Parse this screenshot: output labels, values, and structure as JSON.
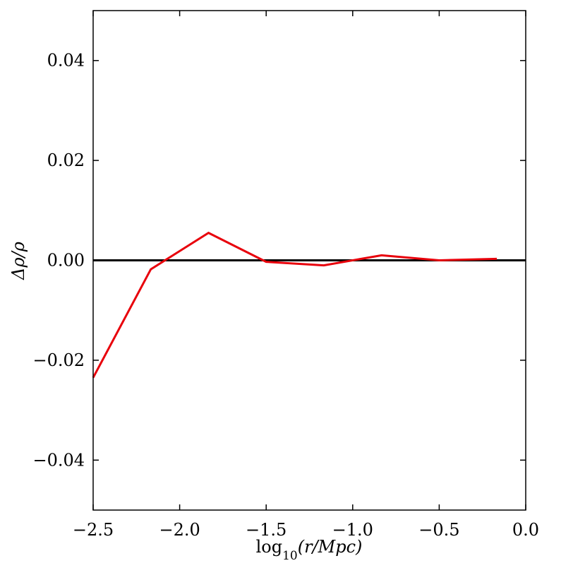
{
  "chart_data": {
    "type": "line",
    "xlabel": "log",
    "xlabel_sub": "10",
    "xlabel_rest": "(r/Mpc)",
    "ylabel": "Δρ/ρ",
    "xlim": [
      -2.5,
      0.0
    ],
    "ylim": [
      -0.05,
      0.05
    ],
    "grid": false,
    "x_ticks": [
      -2.5,
      -2.0,
      -1.5,
      -1.0,
      -0.5,
      0.0
    ],
    "x_tick_labels": [
      "−2.5",
      "−2.0",
      "−1.5",
      "−1.0",
      "−0.5",
      "0.0"
    ],
    "y_ticks": [
      0.04,
      0.02,
      0.0,
      -0.02,
      -0.04
    ],
    "y_tick_labels": [
      "0.04",
      "0.02",
      "0.00",
      "−0.02",
      "−0.04"
    ],
    "reference_line": {
      "y": 0.0,
      "color": "#000000"
    },
    "series": [
      {
        "color": "#e8000b",
        "x": [
          -2.5,
          -2.167,
          -1.833,
          -1.5,
          -1.167,
          -0.833,
          -0.5,
          -0.167
        ],
        "y": [
          -0.0235,
          -0.0018,
          0.0055,
          -0.0003,
          -0.001,
          0.001,
          0.0,
          0.0003
        ]
      }
    ]
  }
}
